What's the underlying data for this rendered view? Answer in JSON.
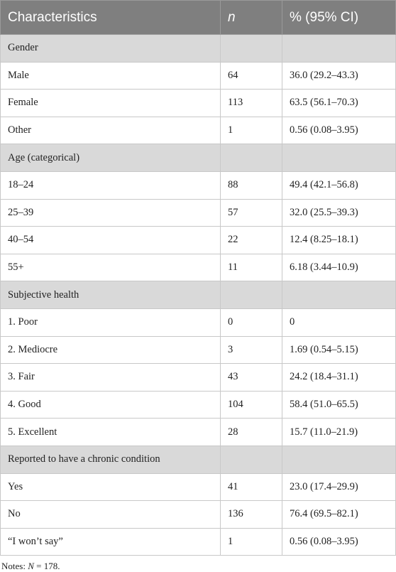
{
  "table": {
    "header": [
      "Characteristics",
      "n",
      "% (95% CI)"
    ],
    "sections": [
      {
        "title": "Gender",
        "rows": [
          [
            "Male",
            64,
            "36.0 (29.2–43.3)"
          ],
          [
            "Female",
            113,
            "63.5 (56.1–70.3)"
          ],
          [
            "Other",
            1,
            "0.56 (0.08–3.95)"
          ]
        ]
      },
      {
        "title": "Age (categorical)",
        "rows": [
          [
            "18–24",
            88,
            "49.4 (42.1–56.8)"
          ],
          [
            "25–39",
            57,
            "32.0 (25.5–39.3)"
          ],
          [
            "40–54",
            22,
            "12.4 (8.25–18.1)"
          ],
          [
            "55+",
            11,
            "6.18 (3.44–10.9)"
          ]
        ]
      },
      {
        "title": "Subjective health",
        "rows": [
          [
            "1. Poor",
            0,
            "0"
          ],
          [
            "2. Mediocre",
            3,
            "1.69 (0.54–5.15)"
          ],
          [
            "3. Fair",
            43,
            "24.2 (18.4–31.1)"
          ],
          [
            "4. Good",
            104,
            "58.4 (51.0–65.5)"
          ],
          [
            "5. Excellent",
            28,
            "15.7 (11.0–21.9)"
          ]
        ]
      },
      {
        "title": "Reported to have a chronic condition",
        "rows": [
          [
            "Yes",
            41,
            "23.0 (17.4–29.9)"
          ],
          [
            "No",
            136,
            "76.4 (69.5–82.1)"
          ],
          [
            "“I won’t say”",
            1,
            "0.56 (0.08–3.95)"
          ]
        ]
      }
    ]
  },
  "notes": {
    "prefix": "Notes:",
    "variable": "N",
    "rest": "= 178."
  }
}
